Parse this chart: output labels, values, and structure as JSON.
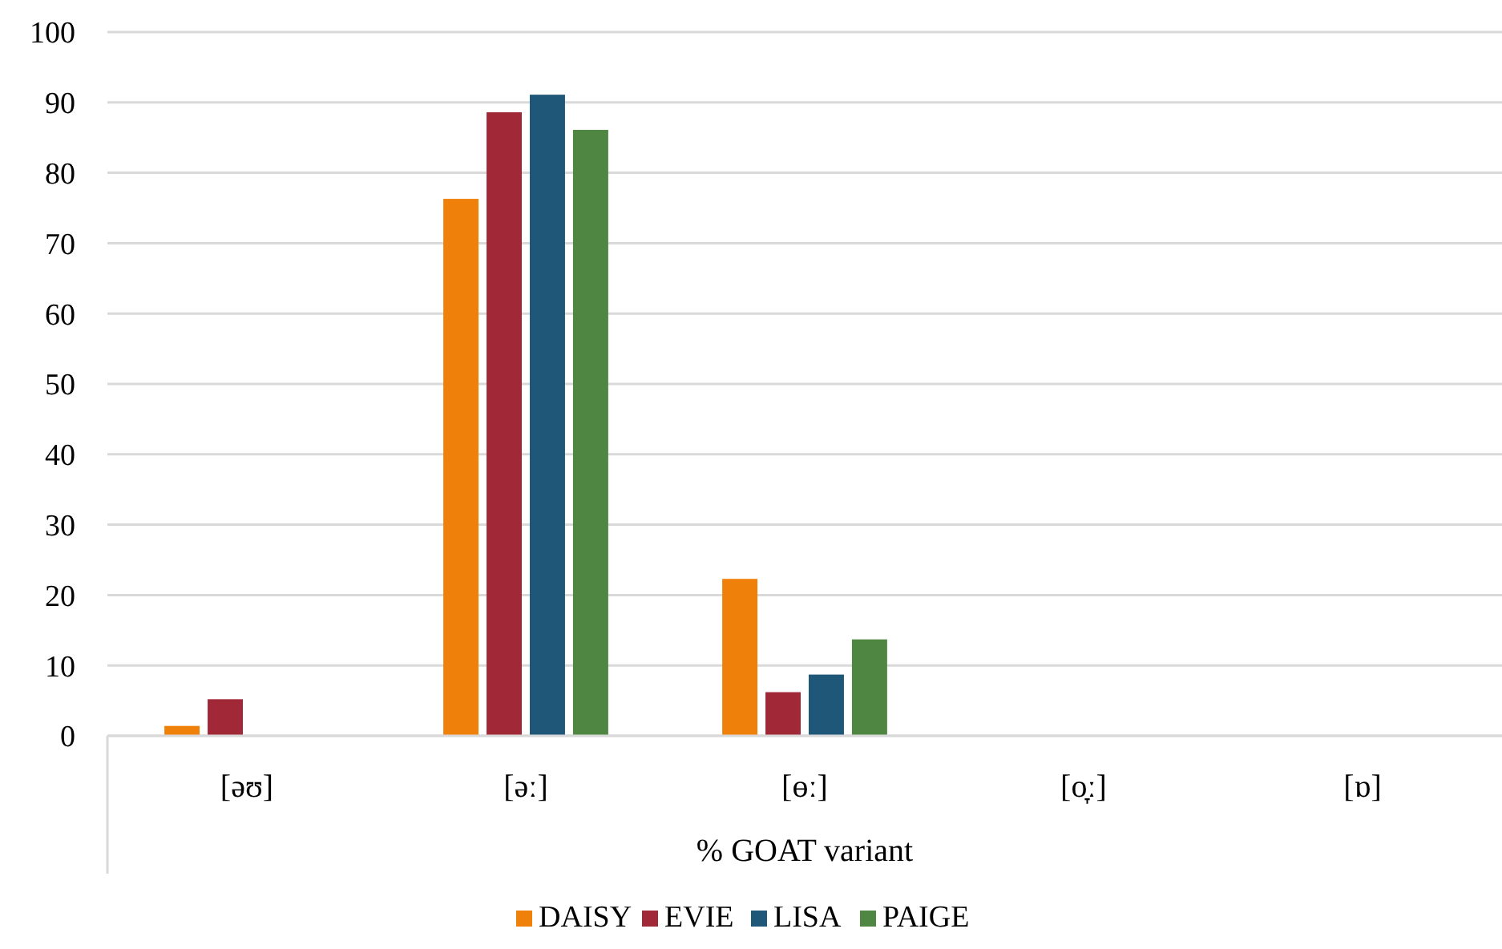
{
  "chart_data": {
    "type": "bar",
    "xlabel": "% GOAT variant",
    "categories": [
      "[əʊ]",
      "[əː]",
      "[ɵː]",
      "[o̞ː]",
      "[ɒ]"
    ],
    "series": [
      {
        "name": "DAISY",
        "color": "#ef800a",
        "values": [
          1.4,
          76.3,
          22.3,
          0,
          0
        ]
      },
      {
        "name": "EVIE",
        "color": "#a12837",
        "values": [
          5.2,
          88.6,
          6.2,
          0,
          0
        ]
      },
      {
        "name": "LISA",
        "color": "#1f5779",
        "values": [
          0,
          91.1,
          8.7,
          0,
          0
        ]
      },
      {
        "name": "PAIGE",
        "color": "#4f8742",
        "values": [
          0,
          86.1,
          13.7,
          0,
          0
        ]
      }
    ],
    "ylim": [
      0,
      100
    ],
    "yticks": [
      0,
      10,
      20,
      30,
      40,
      50,
      60,
      70,
      80,
      90,
      100
    ],
    "grid": "y",
    "legend": "bottom"
  }
}
